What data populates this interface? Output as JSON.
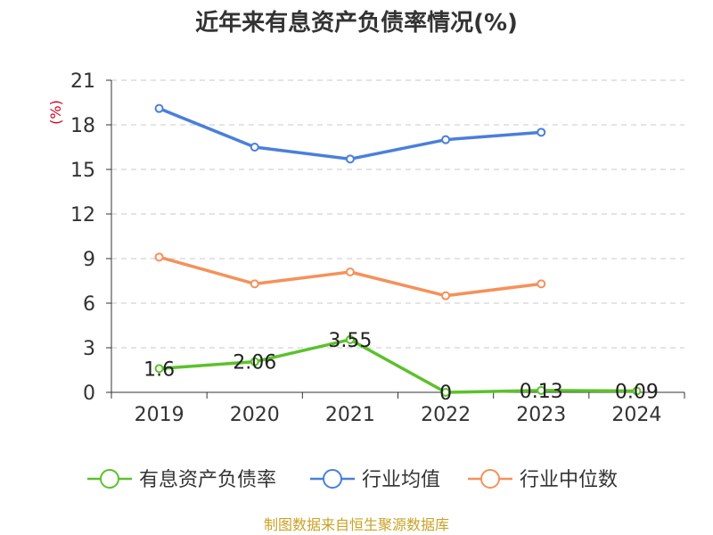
{
  "chart_data": {
    "type": "line",
    "title": "近年来有息资产负债率情况(%)",
    "yunit": "(%)",
    "categories": [
      "2019",
      "2020",
      "2021",
      "2022",
      "2023",
      "2024"
    ],
    "ylim": [
      0,
      21
    ],
    "yticks": [
      0,
      3,
      6,
      9,
      12,
      15,
      18,
      21
    ],
    "grid": true,
    "legend_position": "bottom",
    "series": [
      {
        "name": "有息资产负债率",
        "color": "#5cc12c",
        "values": [
          1.6,
          2.06,
          3.55,
          0,
          0.13,
          0.09
        ],
        "labels": [
          "1.6",
          "2.06",
          "3.55",
          "0",
          "0.13",
          "0.09"
        ]
      },
      {
        "name": "行业均值",
        "color": "#4a7fdb",
        "values": [
          19.1,
          16.5,
          15.7,
          17.0,
          17.5,
          null
        ]
      },
      {
        "name": "行业中位数",
        "color": "#f5915a",
        "values": [
          9.1,
          7.3,
          8.1,
          6.5,
          7.3,
          null
        ]
      }
    ],
    "source": "制图数据来自恒生聚源数据库"
  }
}
